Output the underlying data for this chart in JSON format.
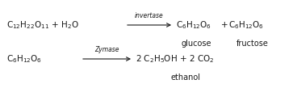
{
  "background_color": "#ffffff",
  "figsize": [
    3.68,
    1.09
  ],
  "dpi": 100,
  "line1": {
    "reactant": "C$_{12}$H$_{22}$O$_{11}$ + H$_{2}$O",
    "arrow_label": "invertase",
    "product1": "C$_{6}$H$_{12}$O$_{6}$",
    "plus": "+",
    "product2": "C$_{6}$H$_{12}$O$_{6}$",
    "label1": "glucose",
    "label2": "fructose"
  },
  "line2": {
    "reactant": "C$_{6}$H$_{12}$O$_{6}$",
    "arrow_label": "Zymase",
    "product": "2 C$_{2}$H$_{5}$OH + 2 CO$_{2}$",
    "label": "ethanol"
  },
  "font_size": 7.5,
  "label_font_size": 7.0,
  "arrow_font_size": 5.5,
  "text_color": "#1a1a1a"
}
